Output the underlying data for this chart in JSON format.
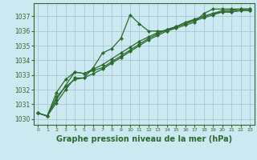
{
  "title": "Graphe pression niveau de la mer (hPa)",
  "background_color": "#cce8f0",
  "grid_color": "#aaccd8",
  "line_color": "#2d6a2d",
  "xlim": [
    -0.5,
    23.5
  ],
  "ylim": [
    1029.6,
    1037.9
  ],
  "xticks": [
    0,
    1,
    2,
    3,
    4,
    5,
    6,
    7,
    8,
    9,
    10,
    11,
    12,
    13,
    14,
    15,
    16,
    17,
    18,
    19,
    20,
    21,
    22,
    23
  ],
  "yticks": [
    1030,
    1031,
    1032,
    1033,
    1034,
    1035,
    1036,
    1037
  ],
  "series": [
    {
      "x": [
        0,
        1,
        2,
        3,
        4,
        5,
        6,
        7,
        8,
        9,
        10,
        11,
        12,
        13,
        14,
        15,
        16,
        17,
        18,
        19,
        20,
        21,
        22,
        23
      ],
      "y": [
        1030.4,
        1030.2,
        1031.1,
        1032.0,
        1032.8,
        1032.8,
        1033.5,
        1034.5,
        1034.8,
        1035.5,
        1037.1,
        1036.5,
        1036.0,
        1036.0,
        1036.0,
        1036.2,
        1036.4,
        1036.6,
        1037.2,
        1037.5,
        1037.5,
        1037.5,
        1037.5,
        1037.5
      ],
      "marker": "D",
      "markersize": 2.0,
      "linewidth": 0.9
    },
    {
      "x": [
        0,
        1,
        2,
        3,
        4,
        5,
        6,
        7,
        8,
        9,
        10,
        11,
        12,
        13,
        14,
        15,
        16,
        17,
        18,
        19,
        20,
        21,
        22,
        23
      ],
      "y": [
        1030.4,
        1030.2,
        1031.8,
        1032.7,
        1033.2,
        1033.1,
        1033.4,
        1033.7,
        1034.1,
        1034.5,
        1034.9,
        1035.3,
        1035.6,
        1035.9,
        1036.1,
        1036.3,
        1036.6,
        1036.8,
        1037.0,
        1037.2,
        1037.4,
        1037.4,
        1037.5,
        1037.5
      ],
      "marker": "D",
      "markersize": 2.0,
      "linewidth": 0.9
    },
    {
      "x": [
        0,
        1,
        2,
        3,
        4,
        5,
        6,
        7,
        8,
        9,
        10,
        11,
        12,
        13,
        14,
        15,
        16,
        17,
        18,
        19,
        20,
        21,
        22,
        23
      ],
      "y": [
        1030.4,
        1030.2,
        1031.5,
        1032.2,
        1032.7,
        1032.8,
        1033.1,
        1033.4,
        1033.8,
        1034.2,
        1034.6,
        1035.0,
        1035.4,
        1035.7,
        1036.0,
        1036.3,
        1036.5,
        1036.7,
        1036.9,
        1037.1,
        1037.3,
        1037.3,
        1037.4,
        1037.4
      ],
      "marker": "D",
      "markersize": 2.0,
      "linewidth": 0.9
    },
    {
      "x": [
        0,
        1,
        2,
        3,
        4,
        5,
        6,
        7,
        8,
        9,
        10,
        11,
        12,
        13,
        14,
        15,
        16,
        17,
        18,
        19,
        20,
        21,
        22,
        23
      ],
      "y": [
        1030.4,
        1030.2,
        1031.3,
        1032.3,
        1033.2,
        1033.1,
        1033.3,
        1033.5,
        1033.9,
        1034.3,
        1034.7,
        1035.1,
        1035.5,
        1035.8,
        1036.1,
        1036.3,
        1036.5,
        1036.8,
        1037.0,
        1037.2,
        1037.3,
        1037.3,
        1037.4,
        1037.4
      ],
      "marker": "D",
      "markersize": 2.0,
      "linewidth": 0.9
    }
  ],
  "xlabel_fontsize": 7.0,
  "ytick_fontsize": 5.5,
  "xtick_fontsize": 4.5
}
